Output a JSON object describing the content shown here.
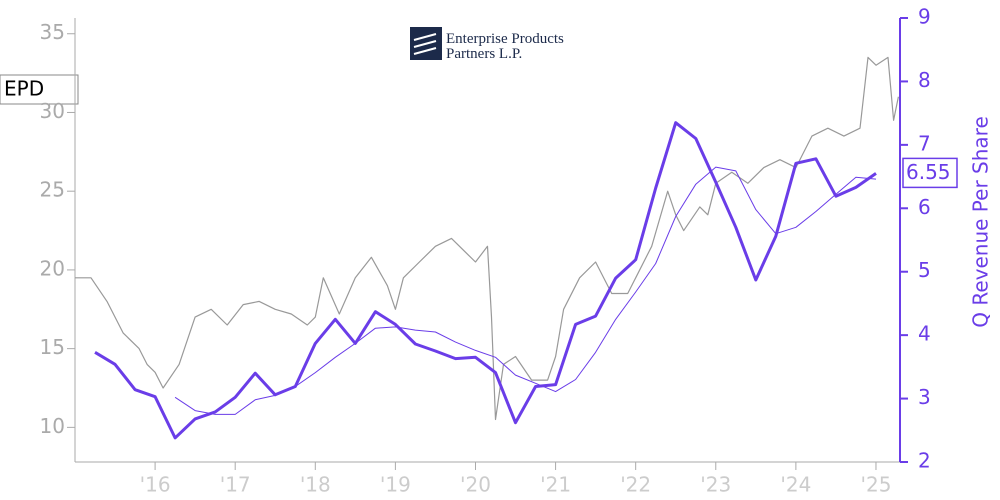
{
  "chart_data": {
    "type": "line",
    "logo_text": [
      "Enterprise Products",
      "Partners L.P."
    ],
    "ticker": "EPD",
    "y2label": "Q Revenue Per Share",
    "xlim": [
      2015.0,
      2025.3
    ],
    "xticks": [
      {
        "value": 2016,
        "label": "'16"
      },
      {
        "value": 2017,
        "label": "'17"
      },
      {
        "value": 2018,
        "label": "'18"
      },
      {
        "value": 2019,
        "label": "'19"
      },
      {
        "value": 2020,
        "label": "'20"
      },
      {
        "value": 2021,
        "label": "'21"
      },
      {
        "value": 2022,
        "label": "'22"
      },
      {
        "value": 2023,
        "label": "'23"
      },
      {
        "value": 2024,
        "label": "'24"
      },
      {
        "value": 2025,
        "label": "'25"
      }
    ],
    "ylim": [
      7.8,
      36
    ],
    "yticks": [
      10,
      15,
      20,
      25,
      30,
      35
    ],
    "y2lim": [
      2,
      9
    ],
    "y2ticks": [
      2,
      3,
      4,
      5,
      6,
      7,
      8,
      9
    ],
    "series": [
      {
        "color": "#999999",
        "axis": "y",
        "x": [
          2015.0,
          2015.2,
          2015.4,
          2015.6,
          2015.8,
          2015.9,
          2016.0,
          2016.1,
          2016.3,
          2016.5,
          2016.7,
          2016.9,
          2017.1,
          2017.3,
          2017.5,
          2017.7,
          2017.9,
          2018.0,
          2018.1,
          2018.3,
          2018.5,
          2018.7,
          2018.9,
          2019.0,
          2019.1,
          2019.3,
          2019.5,
          2019.7,
          2019.9,
          2020.0,
          2020.15,
          2020.2,
          2020.25,
          2020.35,
          2020.5,
          2020.7,
          2020.9,
          2021.0,
          2021.1,
          2021.3,
          2021.5,
          2021.7,
          2021.9,
          2022.0,
          2022.2,
          2022.4,
          2022.5,
          2022.6,
          2022.8,
          2022.9,
          2023.0,
          2023.2,
          2023.4,
          2023.6,
          2023.8,
          2024.0,
          2024.2,
          2024.4,
          2024.6,
          2024.8,
          2024.9,
          2025.0,
          2025.15,
          2025.22,
          2025.28
        ],
        "values": [
          19.5,
          19.5,
          18,
          16,
          15,
          14,
          13.5,
          12.5,
          14,
          17,
          17.5,
          16.5,
          17.8,
          18.0,
          17.5,
          17.2,
          16.5,
          17.0,
          19.5,
          17.2,
          19.5,
          20.8,
          19.0,
          17.5,
          19.5,
          20.5,
          21.5,
          22.0,
          21.0,
          20.5,
          21.5,
          17,
          10.5,
          14,
          14.5,
          13,
          13,
          14.5,
          17.5,
          19.5,
          20.5,
          18.5,
          18.5,
          19.5,
          21.5,
          25.0,
          23.5,
          22.5,
          24.0,
          23.5,
          25.5,
          26.2,
          25.5,
          26.5,
          27.0,
          26.5,
          28.5,
          29.0,
          28.5,
          29.0,
          33.5,
          33,
          33.5,
          29.5,
          31
        ]
      },
      {
        "color": "#6a3de8",
        "axis": "y2",
        "x": [
          2015.25,
          2015.5,
          2015.75,
          2016.0,
          2016.25,
          2016.5,
          2016.75,
          2017.0,
          2017.25,
          2017.5,
          2017.75,
          2018.0,
          2018.25,
          2018.5,
          2018.75,
          2019.0,
          2019.25,
          2019.5,
          2019.75,
          2020.0,
          2020.25,
          2020.5,
          2020.75,
          2021.0,
          2021.25,
          2021.5,
          2021.75,
          2022.0,
          2022.25,
          2022.5,
          2022.75,
          2023.0,
          2023.25,
          2023.5,
          2023.75,
          2024.0,
          2024.25,
          2024.5,
          2024.75,
          2025.0
        ],
        "values": [
          3.73,
          3.54,
          3.14,
          3.03,
          2.38,
          2.68,
          2.79,
          3.02,
          3.4,
          3.06,
          3.19,
          3.87,
          4.25,
          3.87,
          4.37,
          4.17,
          3.86,
          3.75,
          3.63,
          3.65,
          3.41,
          2.62,
          3.19,
          3.22,
          4.17,
          4.3,
          4.9,
          5.19,
          6.32,
          7.35,
          7.1,
          6.41,
          5.7,
          4.87,
          5.56,
          6.71,
          6.78,
          6.19,
          6.33,
          6.55
        ]
      },
      {
        "color": "#6a3de8",
        "axis": "y2",
        "x": [
          2016.25,
          2016.5,
          2016.75,
          2017.0,
          2017.25,
          2017.5,
          2017.75,
          2018.0,
          2018.25,
          2018.5,
          2018.75,
          2019.0,
          2019.25,
          2019.5,
          2019.75,
          2020.0,
          2020.25,
          2020.5,
          2020.75,
          2021.0,
          2021.25,
          2021.5,
          2021.75,
          2022.0,
          2022.25,
          2022.5,
          2022.75,
          2023.0,
          2023.25,
          2023.5,
          2023.75,
          2024.0,
          2024.25,
          2024.5,
          2024.75,
          2025.0
        ],
        "values": [
          3.02,
          2.81,
          2.75,
          2.75,
          2.98,
          3.05,
          3.19,
          3.41,
          3.65,
          3.87,
          4.11,
          4.13,
          4.08,
          4.05,
          3.89,
          3.76,
          3.65,
          3.37,
          3.24,
          3.11,
          3.3,
          3.73,
          4.25,
          4.68,
          5.13,
          5.87,
          6.38,
          6.65,
          6.59,
          5.98,
          5.6,
          5.7,
          5.95,
          6.22,
          6.49,
          6.46
        ]
      }
    ]
  }
}
